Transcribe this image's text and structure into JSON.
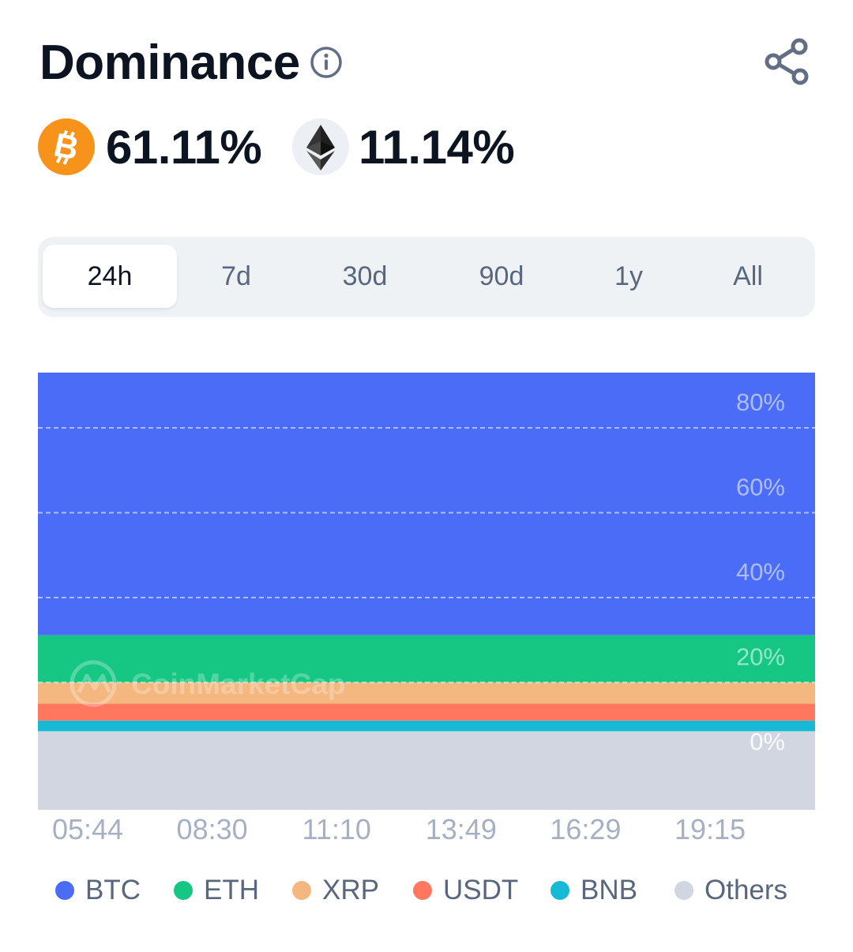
{
  "header": {
    "title": "Dominance"
  },
  "dominance": [
    {
      "symbol": "BTC",
      "icon": "bitcoin-icon",
      "value": "61.11%"
    },
    {
      "symbol": "ETH",
      "icon": "ethereum-icon",
      "value": "11.14%"
    }
  ],
  "tabs": [
    {
      "label": "24h",
      "active": true
    },
    {
      "label": "7d",
      "active": false
    },
    {
      "label": "30d",
      "active": false
    },
    {
      "label": "90d",
      "active": false
    },
    {
      "label": "1y",
      "active": false
    },
    {
      "label": "All",
      "active": false
    }
  ],
  "chart_data": {
    "type": "area",
    "stacked": true,
    "ylim": [
      0,
      90
    ],
    "y_ticks": [
      "0%",
      "20%",
      "40%",
      "60%",
      "80%"
    ],
    "x": [
      "05:44",
      "08:30",
      "11:10",
      "13:49",
      "16:29",
      "19:15"
    ],
    "grid": true,
    "legend_position": "bottom",
    "watermark": "CoinMarketCap",
    "series": [
      {
        "name": "Others",
        "color": "#d1d6e1",
        "values": [
          8.5,
          8.5,
          8.5,
          8.5,
          8.5,
          8.5
        ]
      },
      {
        "name": "BNB",
        "color": "#17bad4",
        "values": [
          2.5,
          2.5,
          2.5,
          2.5,
          2.5,
          2.5
        ]
      },
      {
        "name": "USDT",
        "color": "#ff775f",
        "values": [
          4.0,
          4.0,
          4.0,
          4.0,
          4.0,
          4.0
        ]
      },
      {
        "name": "XRP",
        "color": "#f4b77f",
        "values": [
          5.0,
          5.0,
          5.0,
          5.0,
          5.0,
          5.0
        ]
      },
      {
        "name": "ETH",
        "color": "#16c784",
        "values": [
          11.14,
          11.14,
          11.14,
          11.14,
          11.14,
          11.14
        ]
      },
      {
        "name": "BTC",
        "color": "#4a6cf7",
        "values": [
          61.11,
          61.11,
          61.11,
          61.11,
          61.11,
          61.11
        ]
      }
    ]
  },
  "legend": [
    {
      "label": "BTC",
      "color": "#4a6cf7"
    },
    {
      "label": "ETH",
      "color": "#16c784"
    },
    {
      "label": "XRP",
      "color": "#f4b77f"
    },
    {
      "label": "USDT",
      "color": "#ff775f"
    },
    {
      "label": "BNB",
      "color": "#17bad4"
    },
    {
      "label": "Others",
      "color": "#d1d6e1"
    }
  ]
}
